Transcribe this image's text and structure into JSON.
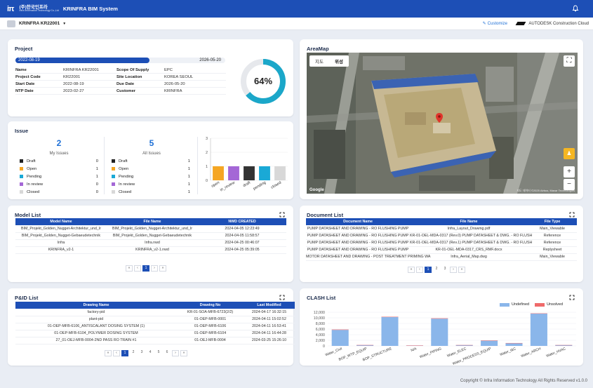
{
  "app": {
    "logo_korean": "(주)한국인프라",
    "logo_english": "Infra Information Technology Co.,Ltd",
    "title": "KRINFRA BIM System",
    "bell_icon": "bell-icon"
  },
  "subbar": {
    "project_name": "KRINFRA KR22001",
    "customize_label": "Customize",
    "autodesk_label": "AUTODESK Construction Cloud"
  },
  "project": {
    "title": "Project",
    "start_date": "2022-08-19",
    "end_date": "2026-05-20",
    "progress_fraction": 0.64,
    "progress_label": "64%",
    "rows": [
      {
        "l1": "Name",
        "v1": "KRINFRA KR22001",
        "l2": "Scope Of Supply",
        "v2": "EPC"
      },
      {
        "l1": "Project Code",
        "v1": "KR22001",
        "l2": "Site Location",
        "v2": "KOREA SEOUL"
      },
      {
        "l1": "Start Date",
        "v1": "2022-08-19",
        "l2": "Due Date",
        "v2": "2026-05-20"
      },
      {
        "l1": "NTP Date",
        "v1": "2023-02-27",
        "l2": "Customer",
        "v2": "KRINFRA"
      }
    ]
  },
  "issue": {
    "title": "Issue",
    "my_count": "2",
    "my_label": "My Issues",
    "all_count": "5",
    "all_label": "All Issues",
    "my_list": [
      {
        "label": "Draft",
        "count": "0",
        "color": "#222222"
      },
      {
        "label": "Open",
        "count": "1",
        "color": "#f5a623"
      },
      {
        "label": "Pending",
        "count": "1",
        "color": "#1aa9d6"
      },
      {
        "label": "In review",
        "count": "0",
        "color": "#a467d6"
      },
      {
        "label": "Closed",
        "count": "0",
        "color": "#d8d8d8"
      }
    ],
    "all_list": [
      {
        "label": "Draft",
        "count": "1",
        "color": "#222222"
      },
      {
        "label": "Open",
        "count": "1",
        "color": "#f5a623"
      },
      {
        "label": "Pending",
        "count": "1",
        "color": "#1aa9d6"
      },
      {
        "label": "In review",
        "count": "1",
        "color": "#a467d6"
      },
      {
        "label": "Closed",
        "count": "1",
        "color": "#d8d8d8"
      }
    ]
  },
  "issue_chart": {
    "type": "bar",
    "categories": [
      "open",
      "in_review",
      "draft",
      "pending",
      "closed"
    ],
    "values": [
      1,
      1,
      1,
      1,
      1
    ],
    "colors": [
      "#f5a623",
      "#a467d6",
      "#333333",
      "#1aa9d6",
      "#d8d8d8"
    ],
    "yticks": [
      "3",
      "2",
      "1",
      "0"
    ],
    "ylim": [
      0,
      3
    ]
  },
  "areamap": {
    "title": "AreaMap",
    "tab_map": "지도",
    "tab_satellite": "위성",
    "google_label": "Google",
    "attribution": "지도 데이터 ©2025 Airbus, Maxar Technologies"
  },
  "model_list": {
    "title": "Model List",
    "headers": [
      "Model Name",
      "File Name",
      "NWD CREATED"
    ],
    "rows": [
      [
        "BIM_Projekt_Golden_Nugget-Architektur_und_Ir",
        "BIM_Projekt_Golden_Nugget-Architektur_und_Ir",
        "2024-04-05 12:23:49"
      ],
      [
        "BIM_Projekt_Golden_Nugget-Gebaeudetechnik",
        "BIM_Projekt_Golden_Nugget-Gebaeudetechnik",
        "2024-04-05 11:58:57"
      ],
      [
        "Infra",
        "Infra.nwd",
        "2024-04-25 00:46:07"
      ],
      [
        "KRINFRA_v2-1",
        "KRINFRA_v2-1.nwd",
        "2024-04-25 05:39:05"
      ]
    ],
    "pages": [
      "1"
    ]
  },
  "document_list": {
    "title": "Document List",
    "headers": [
      "Document Name",
      "File Name",
      "File Type"
    ],
    "rows": [
      [
        "PUMP DATASHEET AND DRAWING - RO FLUSHING PUMP",
        "Infra_Layout_Drawing.pdf",
        "Main_Viewable"
      ],
      [
        "PUMP DATASHEET AND DRAWING - RO FLUSHING PUMP",
        "KR-01-OEL-MDA-0317 (Rev.0) PUMP DATASHEET & DWG. - RO FLUSH",
        "Reference"
      ],
      [
        "PUMP DATASHEET AND DRAWING - RO FLUSHING PUMP",
        "KR-01-OEL-MDA-0317 (Rev.1) PUMP DATASHEET & DWG. - RO FLUSH",
        "Reference"
      ],
      [
        "PUMP DATASHEET AND DRAWING - RO FLUSHING PUMP",
        "KR-01-OEL-MDA-0317_CRS_RMF.docx",
        "Replysheet"
      ],
      [
        "MOTOR DATASHEET AND DRAWING - POST TREATMENT PRIMING WA",
        "Infra_Aerial_Map.dwg",
        "Main_Viewable"
      ]
    ],
    "pages": [
      "1",
      "2",
      "3"
    ]
  },
  "pid_list": {
    "title": "P&ID List",
    "headers": [
      "Drawing Name",
      "Drawing No",
      "Last Modified"
    ],
    "rows": [
      [
        "factory-pid",
        "KR-01-SOA-MFB-6723(2/2)",
        "2024-04-17 16:32:15"
      ],
      [
        "plant-pid",
        "01-OEP-MFB-0001",
        "2024-04-11 15:02:52"
      ],
      [
        "01-OEP-MFB-6106_ANTISCALANT DOSING SYSTEM (1)",
        "01-OEP-MFB-6106",
        "2024-04-11 16:53:41"
      ],
      [
        "01-OEP-MFB-6104_POLYMER DOSING SYSTEM",
        "01-OEP-MFB-6104",
        "2024-04-11 16:44:28"
      ],
      [
        "27_01-OEJ-MFB-0004-2ND PASS RO TRAIN #1",
        "01-OEJ-MFB-0004",
        "2024-03-25 15:26:10"
      ]
    ],
    "pages": [
      "1",
      "2",
      "3",
      "4",
      "5",
      "6"
    ]
  },
  "clash_list": {
    "title": "CLASH List",
    "legend_undefined": "Undefined",
    "legend_unsolved": "Unsolved",
    "colors": {
      "undefined": "#8ab6ea",
      "unsolved": "#ef6a6a"
    }
  },
  "chart_data": {
    "type": "bar",
    "categories": [
      "Water_Civil",
      "BOP_WTP_EQUIP",
      "BOP_STRUCTURE",
      "N/A",
      "Water_PIPING",
      "Water_ELEC",
      "Water_PROCESS_EQUIP",
      "Water_I&C",
      "Water_ARCH",
      "Water_HVAC"
    ],
    "series": [
      {
        "name": "Undefined",
        "values": [
          5700,
          300,
          10300,
          150,
          9700,
          300,
          1900,
          1000,
          11500,
          300
        ]
      },
      {
        "name": "Unsolved",
        "values": [
          150,
          20,
          100,
          10,
          150,
          10,
          30,
          20,
          100,
          10
        ]
      }
    ],
    "stacked": true,
    "yticks": [
      "12,000",
      "10,000",
      "8,000",
      "6,000",
      "4,000",
      "2,000",
      "0"
    ],
    "ylim": [
      0,
      12000
    ]
  },
  "footer": {
    "copyright": "Copyright © Infra Information Technology All Rights Reserved v1.0.0"
  }
}
